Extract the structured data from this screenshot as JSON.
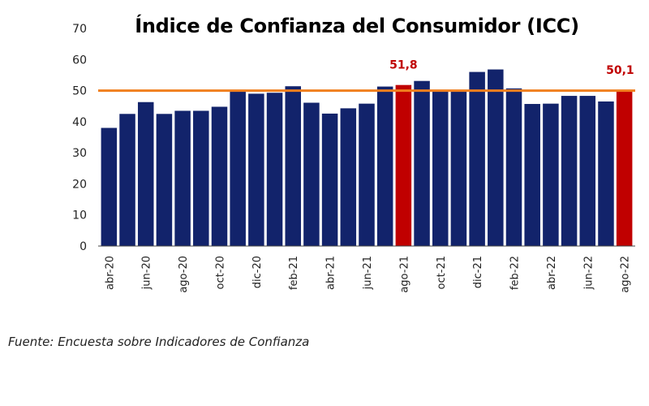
{
  "chart_data": {
    "type": "bar",
    "title": "Índice de Confianza del Consumidor (ICC)",
    "categories": [
      "abr-20",
      "may-20",
      "jun-20",
      "jul-20",
      "ago-20",
      "sep-20",
      "oct-20",
      "nov-20",
      "dic-20",
      "ene-21",
      "feb-21",
      "mar-21",
      "abr-21",
      "may-21",
      "jun-21",
      "jul-21",
      "ago-21",
      "sep-21",
      "oct-21",
      "nov-21",
      "dic-21",
      "ene-22",
      "feb-22",
      "mar-22",
      "abr-22",
      "may-22",
      "jun-22",
      "jul-22",
      "ago-22"
    ],
    "values": [
      38,
      42.5,
      46.3,
      42.5,
      43.5,
      43.5,
      44.8,
      49.7,
      49,
      49.3,
      51.4,
      46.1,
      42.6,
      44.3,
      45.8,
      51.3,
      51.8,
      53.1,
      50,
      50,
      56,
      56.8,
      50.7,
      45.7,
      45.8,
      48.3,
      48.3,
      46.5,
      50.1
    ],
    "ylim": [
      0,
      70
    ],
    "yticks": [
      0,
      10,
      20,
      30,
      40,
      50,
      60,
      70
    ],
    "xtick_labels": [
      "abr-20",
      "jun-20",
      "ago-20",
      "oct-20",
      "dic-20",
      "feb-21",
      "abr-21",
      "jun-21",
      "ago-21",
      "oct-21",
      "dic-21",
      "feb-22",
      "abr-22",
      "jun-22",
      "ago-22"
    ],
    "reference_line": 50,
    "highlighted": [
      {
        "category": "ago-21",
        "label": "51,8"
      },
      {
        "category": "ago-22",
        "label": "50,1"
      }
    ],
    "grid": false,
    "legend": "none",
    "colors": {
      "bar": "#12236b",
      "highlight": "#c00000",
      "reference_line": "#f07f1e",
      "label": "#c00000"
    }
  },
  "source_note": "Fuente: Encuesta sobre Indicadores de Confianza"
}
